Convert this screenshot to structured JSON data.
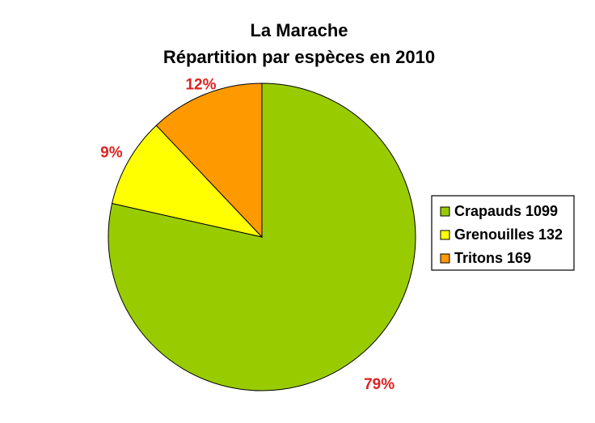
{
  "chart_data": {
    "type": "pie",
    "title": "La Marache",
    "subtitle": "Répartition par espèces en 2010",
    "categories": [
      "Crapauds",
      "Grenouilles",
      "Tritons"
    ],
    "values": [
      1099,
      132,
      169
    ],
    "percent_labels": [
      "79%",
      "9%",
      "12%"
    ],
    "legend": {
      "entries": [
        "Crapauds 1099",
        "Grenouilles 132",
        "Tritons 169"
      ],
      "placement": "right"
    },
    "colors": [
      "#99cc00",
      "#ffff00",
      "#ff9900"
    ],
    "label_color": "#dd2222",
    "start_angle_deg": 0,
    "direction": "clockwise"
  }
}
